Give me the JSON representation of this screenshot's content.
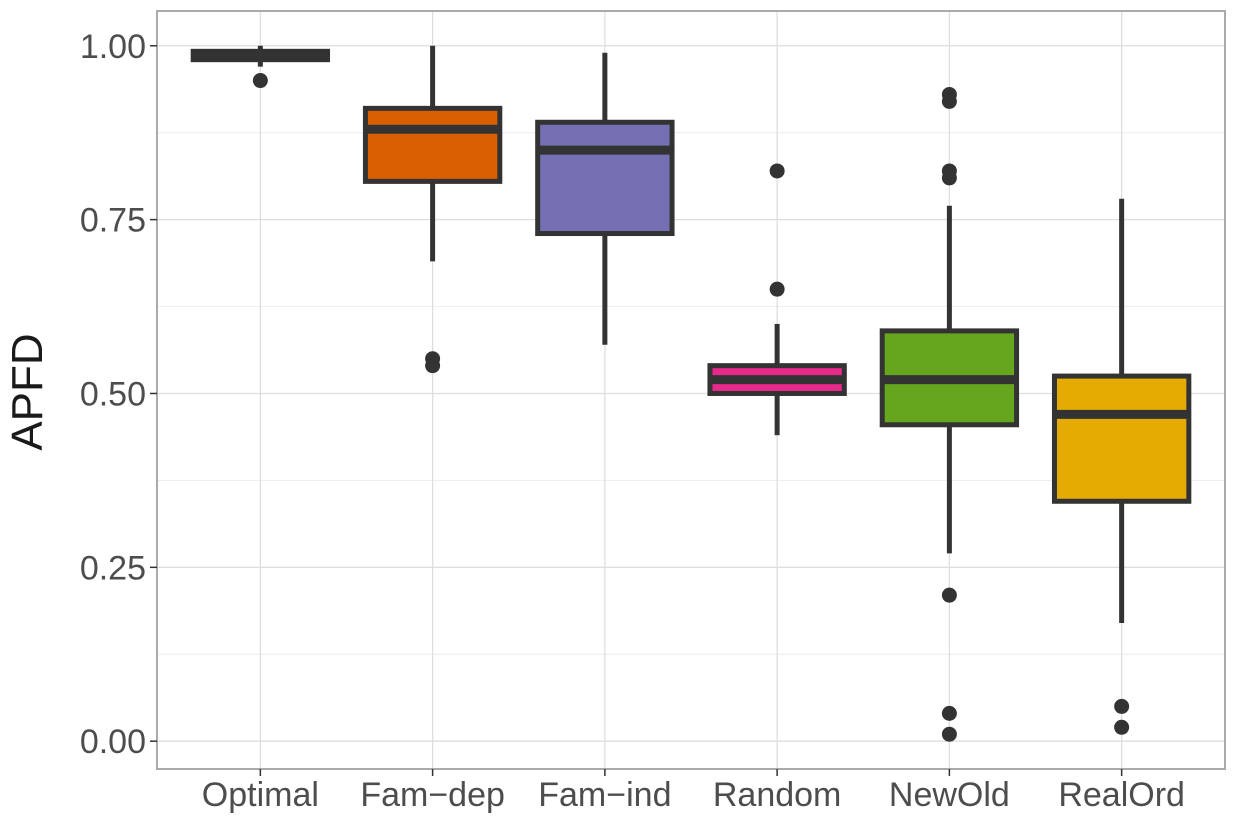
{
  "chart_data": {
    "type": "boxplot",
    "title": "",
    "xlabel": "",
    "ylabel": "APFD",
    "ylim": [
      -0.04,
      1.05
    ],
    "yticks": [
      0.0,
      0.25,
      0.5,
      0.75,
      1.0
    ],
    "ytick_labels": [
      "0.00",
      "0.25",
      "0.50",
      "0.75",
      "1.00"
    ],
    "grid": true,
    "legend": "none",
    "categories": [
      "Optimal",
      "Fam−dep",
      "Fam−ind",
      "Random",
      "NewOld",
      "RealOrd"
    ],
    "boxes": [
      {
        "name": "Optimal",
        "color": "#1b9e77",
        "whisker_low": 0.97,
        "q1": 0.98,
        "median": 0.987,
        "q3": 0.992,
        "whisker_high": 1.0,
        "outliers": [
          0.95
        ]
      },
      {
        "name": "Fam−dep",
        "color": "#d95f02",
        "whisker_low": 0.69,
        "q1": 0.805,
        "median": 0.88,
        "q3": 0.91,
        "whisker_high": 1.0,
        "outliers": [
          0.55,
          0.54
        ]
      },
      {
        "name": "Fam−ind",
        "color": "#7570b3",
        "whisker_low": 0.57,
        "q1": 0.73,
        "median": 0.85,
        "q3": 0.89,
        "whisker_high": 0.99,
        "outliers": []
      },
      {
        "name": "Random",
        "color": "#e7298a",
        "whisker_low": 0.44,
        "q1": 0.5,
        "median": 0.52,
        "q3": 0.54,
        "whisker_high": 0.6,
        "outliers": [
          0.82,
          0.65
        ]
      },
      {
        "name": "NewOld",
        "color": "#66a61e",
        "whisker_low": 0.27,
        "q1": 0.455,
        "median": 0.52,
        "q3": 0.59,
        "whisker_high": 0.77,
        "outliers": [
          0.93,
          0.92,
          0.82,
          0.81,
          0.21,
          0.04,
          0.01
        ]
      },
      {
        "name": "RealOrd",
        "color": "#e6ab02",
        "whisker_low": 0.17,
        "q1": 0.345,
        "median": 0.47,
        "q3": 0.525,
        "whisker_high": 0.78,
        "outliers": [
          0.05,
          0.02
        ]
      }
    ]
  }
}
